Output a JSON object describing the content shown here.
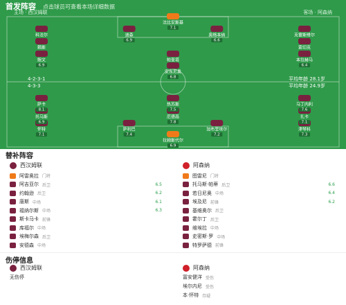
{
  "header": {
    "title": "首发阵容",
    "subtitle": "点击球员可查看本场详细数据"
  },
  "home": {
    "label": "主场 · 西汉姆联",
    "formation": "4-2-3-1",
    "avg_age": "平均年龄 28.1岁",
    "players": [
      {
        "name": "法比安斯基",
        "rating": 7.1
      },
      {
        "name": "科法尔",
        "rating": 6.8
      },
      {
        "name": "道森",
        "rating": 6.9
      },
      {
        "name": "奥格本纳",
        "rating": 6.6
      },
      {
        "name": "克雷斯维尔",
        "rating": 6.7
      },
      {
        "name": "赖斯",
        "rating": 7.3
      },
      {
        "name": "索切克",
        "rating": 6.5
      },
      {
        "name": "鲍文",
        "rating": 6.9
      },
      {
        "name": "帕奎塔",
        "rating": 7.2
      },
      {
        "name": "本拉赫马",
        "rating": 6.4
      },
      {
        "name": "安东尼奥",
        "rating": 6.8
      }
    ]
  },
  "away": {
    "label": "客场 · 阿森纳",
    "formation": "4-3-3",
    "avg_age": "平均年龄 24.9岁",
    "players": [
      {
        "name": "拉姆斯代尔",
        "rating": 6.9
      },
      {
        "name": "怀特",
        "rating": 7.1
      },
      {
        "name": "萨利巴",
        "rating": 7.4
      },
      {
        "name": "加布里埃尔",
        "rating": 7.2
      },
      {
        "name": "津琴科",
        "rating": 7.3
      },
      {
        "name": "托马斯",
        "rating": 6.9
      },
      {
        "name": "厄德高",
        "rating": 7.8
      },
      {
        "name": "扎卡",
        "rating": 7.1
      },
      {
        "name": "萨卡",
        "rating": 8.1
      },
      {
        "name": "热苏斯",
        "rating": 7.5
      },
      {
        "name": "马丁内利",
        "rating": 7.6
      }
    ]
  },
  "subs": {
    "title": "替补阵容",
    "home_team": "西汉姆联",
    "away_team": "阿森纳",
    "home": [
      {
        "name": "阿雷奥拉",
        "position": "门将"
      },
      {
        "name": "阿吉亚尔",
        "position": "后卫",
        "rating": 6.5
      },
      {
        "name": "约翰逊",
        "position": "后卫",
        "rating": 6.2
      },
      {
        "name": "唐斯",
        "position": "中场",
        "rating": 6.1
      },
      {
        "name": "福纳尔斯",
        "position": "中场",
        "rating": 6.3
      },
      {
        "name": "斯卡马卡",
        "position": "前锋"
      },
      {
        "name": "库福尔",
        "position": "中场"
      },
      {
        "name": "埃梅尔森",
        "position": "后卫"
      },
      {
        "name": "安德森",
        "position": "中场"
      }
    ],
    "away": [
      {
        "name": "图雷尼",
        "position": "门将"
      },
      {
        "name": "托马斯·帕蒂",
        "position": "后卫",
        "rating": 6.6
      },
      {
        "name": "若日尼奥",
        "position": "中场",
        "rating": 6.4
      },
      {
        "name": "埃及尼",
        "position": "前锋",
        "rating": 6.2
      },
      {
        "name": "基维奥尔",
        "position": "后卫"
      },
      {
        "name": "霍尔丁",
        "position": "后卫"
      },
      {
        "name": "维埃拉",
        "position": "中场"
      },
      {
        "name": "史密斯·罗",
        "position": "中场"
      },
      {
        "name": "特罗萨德",
        "position": "前锋"
      }
    ]
  },
  "injuries": {
    "title": "伤停信息",
    "home": [
      {
        "name": "无伤停",
        "note": ""
      }
    ],
    "away": [
      {
        "name": "冨安健洋",
        "note": "受伤"
      },
      {
        "name": "埃尔内尼",
        "note": "受伤"
      },
      {
        "name": "本·怀特",
        "note": "存疑"
      }
    ]
  }
}
